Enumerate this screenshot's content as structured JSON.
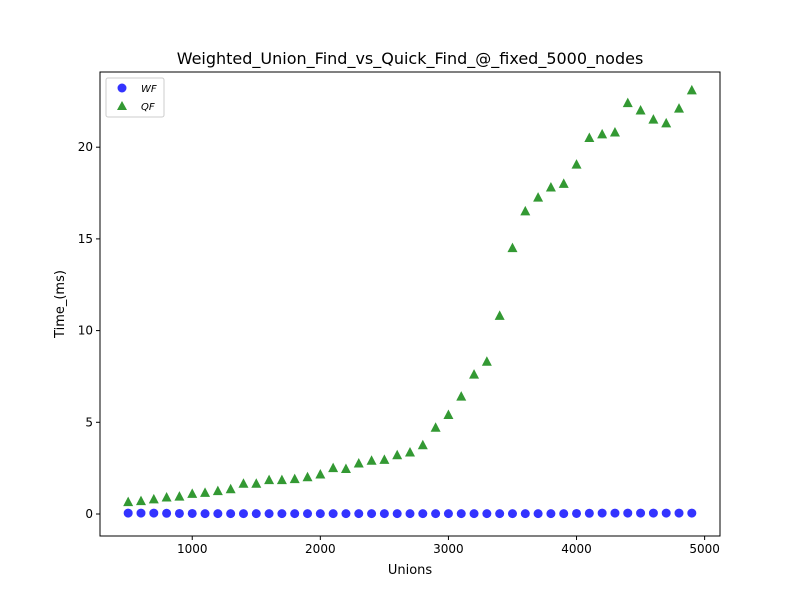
{
  "chart_data": {
    "type": "scatter",
    "title": "Weighted_Union_Find_vs_Quick_Find_@_fixed_5000_nodes",
    "xlabel": "Unions",
    "ylabel": "Time_(ms)",
    "xlim": [
      280,
      5120
    ],
    "ylim": [
      -1.2,
      24.1
    ],
    "xticks": [
      1000,
      2000,
      3000,
      4000,
      5000
    ],
    "yticks": [
      0,
      5,
      10,
      15,
      20
    ],
    "grid": false,
    "legend_placement": "top-left",
    "series": [
      {
        "name": "WF",
        "marker": "circle",
        "color": "#0000ff",
        "x": [
          500,
          600,
          700,
          800,
          900,
          1000,
          1100,
          1200,
          1300,
          1400,
          1500,
          1600,
          1700,
          1800,
          1900,
          2000,
          2100,
          2200,
          2300,
          2400,
          2500,
          2600,
          2700,
          2800,
          2900,
          3000,
          3100,
          3200,
          3300,
          3400,
          3500,
          3600,
          3700,
          3800,
          3900,
          4000,
          4100,
          4200,
          4300,
          4400,
          4500,
          4600,
          4700,
          4800,
          4900
        ],
        "y": [
          0.05,
          0.05,
          0.05,
          0.04,
          0.03,
          0.03,
          0.02,
          0.02,
          0.02,
          0.02,
          0.02,
          0.02,
          0.02,
          0.02,
          0.02,
          0.02,
          0.02,
          0.02,
          0.02,
          0.02,
          0.02,
          0.02,
          0.02,
          0.02,
          0.02,
          0.02,
          0.02,
          0.02,
          0.02,
          0.02,
          0.02,
          0.02,
          0.02,
          0.02,
          0.02,
          0.03,
          0.04,
          0.05,
          0.05,
          0.05,
          0.05,
          0.05,
          0.05,
          0.05,
          0.05
        ]
      },
      {
        "name": "QF",
        "marker": "triangle",
        "color": "#008000",
        "x": [
          500,
          600,
          700,
          800,
          900,
          1000,
          1100,
          1200,
          1300,
          1400,
          1500,
          1600,
          1700,
          1800,
          1900,
          2000,
          2100,
          2200,
          2300,
          2400,
          2500,
          2600,
          2700,
          2800,
          2900,
          3000,
          3100,
          3200,
          3300,
          3400,
          3500,
          3600,
          3700,
          3800,
          3900,
          4000,
          4100,
          4200,
          4300,
          4400,
          4500,
          4600,
          4700,
          4800,
          4900
        ],
        "y": [
          0.65,
          0.7,
          0.8,
          0.9,
          0.95,
          1.1,
          1.15,
          1.25,
          1.35,
          1.65,
          1.65,
          1.85,
          1.85,
          1.9,
          2.0,
          2.15,
          2.5,
          2.45,
          2.75,
          2.9,
          2.95,
          3.2,
          3.35,
          3.75,
          4.7,
          5.4,
          6.4,
          7.6,
          8.3,
          10.8,
          14.5,
          16.5,
          17.25,
          17.8,
          18.0,
          19.05,
          20.5,
          20.7,
          20.8,
          22.4,
          22.0,
          21.5,
          21.3,
          22.1,
          23.1
        ]
      }
    ]
  }
}
